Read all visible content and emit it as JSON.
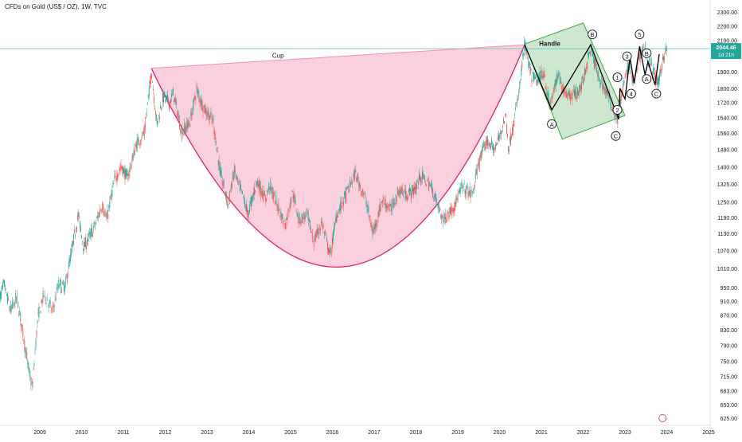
{
  "header": {
    "title": "CFDs on Gold (US$ / OZ), 1W, TVC"
  },
  "colors": {
    "bull": "#26a69a",
    "bear": "#ef5350",
    "cup_fill": "#f8bbd0",
    "cup_line": "#e91e63",
    "handle_fill": "#a5d6a7",
    "handle_line": "#43a047",
    "level_line": "#80cbc4",
    "wave": "#000000",
    "price_badge": "#26a69a",
    "axis_text": "#131722",
    "grid": "#f0f3fa"
  },
  "chart_data": {
    "type": "candlestick",
    "scale": "log",
    "ylim": [
      600,
      2350
    ],
    "xlim": [
      2008.0,
      2025.2
    ],
    "grid": false,
    "y_ticks": [
      "2300.00",
      "2200.00",
      "2100.00",
      "2000.00",
      "1900.00",
      "1800.00",
      "1720.00",
      "1640.00",
      "1560.00",
      "1480.00",
      "1400.00",
      "1325.00",
      "1250.00",
      "1190.00",
      "1130.00",
      "1070.00",
      "1010.00",
      "950.00",
      "910.00",
      "870.00",
      "830.00",
      "790.00",
      "750.00",
      "715.00",
      "683.00",
      "653.00",
      "625.00"
    ],
    "x_ticks": [
      "2009",
      "2010",
      "2011",
      "2012",
      "2013",
      "2014",
      "2015",
      "2016",
      "2017",
      "2018",
      "2019",
      "2020",
      "2021",
      "2022",
      "2023",
      "2024",
      "2025"
    ],
    "last_price": {
      "value": "2044.46",
      "countdown": "1d 21h"
    },
    "price_path": [
      [
        2008.0,
        900
      ],
      [
        2008.15,
        960
      ],
      [
        2008.3,
        880
      ],
      [
        2008.45,
        920
      ],
      [
        2008.6,
        820
      ],
      [
        2008.75,
        720
      ],
      [
        2008.82,
        690
      ],
      [
        2008.95,
        860
      ],
      [
        2009.1,
        930
      ],
      [
        2009.3,
        880
      ],
      [
        2009.45,
        960
      ],
      [
        2009.6,
        950
      ],
      [
        2009.8,
        1100
      ],
      [
        2009.92,
        1200
      ],
      [
        2010.05,
        1080
      ],
      [
        2010.3,
        1150
      ],
      [
        2010.5,
        1240
      ],
      [
        2010.6,
        1180
      ],
      [
        2010.8,
        1350
      ],
      [
        2010.95,
        1400
      ],
      [
        2011.1,
        1350
      ],
      [
        2011.3,
        1500
      ],
      [
        2011.5,
        1560
      ],
      [
        2011.67,
        1900
      ],
      [
        2011.8,
        1600
      ],
      [
        2011.95,
        1750
      ],
      [
        2012.1,
        1720
      ],
      [
        2012.2,
        1770
      ],
      [
        2012.4,
        1560
      ],
      [
        2012.6,
        1620
      ],
      [
        2012.75,
        1790
      ],
      [
        2012.95,
        1680
      ],
      [
        2013.15,
        1620
      ],
      [
        2013.3,
        1390
      ],
      [
        2013.5,
        1240
      ],
      [
        2013.65,
        1380
      ],
      [
        2013.9,
        1250
      ],
      [
        2013.98,
        1200
      ],
      [
        2014.2,
        1340
      ],
      [
        2014.4,
        1260
      ],
      [
        2014.5,
        1320
      ],
      [
        2014.7,
        1230
      ],
      [
        2014.87,
        1160
      ],
      [
        2015.05,
        1290
      ],
      [
        2015.2,
        1180
      ],
      [
        2015.4,
        1200
      ],
      [
        2015.55,
        1100
      ],
      [
        2015.75,
        1170
      ],
      [
        2015.95,
        1050
      ],
      [
        2016.1,
        1200
      ],
      [
        2016.25,
        1250
      ],
      [
        2016.55,
        1370
      ],
      [
        2016.8,
        1260
      ],
      [
        2016.97,
        1130
      ],
      [
        2017.2,
        1260
      ],
      [
        2017.4,
        1220
      ],
      [
        2017.6,
        1300
      ],
      [
        2017.75,
        1280
      ],
      [
        2017.98,
        1300
      ],
      [
        2018.1,
        1360
      ],
      [
        2018.35,
        1320
      ],
      [
        2018.5,
        1250
      ],
      [
        2018.65,
        1180
      ],
      [
        2018.9,
        1230
      ],
      [
        2019.1,
        1310
      ],
      [
        2019.35,
        1280
      ],
      [
        2019.5,
        1420
      ],
      [
        2019.7,
        1520
      ],
      [
        2019.9,
        1480
      ],
      [
        2020.15,
        1650
      ],
      [
        2020.22,
        1480
      ],
      [
        2020.45,
        1750
      ],
      [
        2020.6,
        2070
      ],
      [
        2020.75,
        1880
      ],
      [
        2020.9,
        1840
      ],
      [
        2021.05,
        1900
      ],
      [
        2021.2,
        1700
      ],
      [
        2021.4,
        1880
      ],
      [
        2021.55,
        1780
      ],
      [
        2021.75,
        1760
      ],
      [
        2021.95,
        1800
      ],
      [
        2022.18,
        2050
      ],
      [
        2022.35,
        1880
      ],
      [
        2022.55,
        1780
      ],
      [
        2022.7,
        1700
      ],
      [
        2022.82,
        1630
      ],
      [
        2022.95,
        1800
      ],
      [
        2023.1,
        1950
      ],
      [
        2023.2,
        1820
      ],
      [
        2023.35,
        2000
      ],
      [
        2023.45,
        2050
      ],
      [
        2023.6,
        1950
      ],
      [
        2023.75,
        1850
      ],
      [
        2023.8,
        1820
      ],
      [
        2023.92,
        2000
      ],
      [
        2024.0,
        2044
      ]
    ],
    "annotations": {
      "cup_label": "Cup",
      "handle_label": "Handle",
      "wave_labels": [
        "A",
        "B",
        "C",
        "1",
        "2",
        "3",
        "4",
        "5",
        "A",
        "B",
        "C"
      ]
    },
    "cup": {
      "rim_left": [
        2011.67,
        1920
      ],
      "rim_right": [
        2020.6,
        2070
      ],
      "bottom": [
        2016.3,
        1015
      ]
    },
    "handle_channel": [
      [
        2020.6,
        2075
      ],
      [
        2022.0,
        2220
      ],
      [
        2023.0,
        1650
      ],
      [
        2021.5,
        1530
      ]
    ],
    "handle_wave": [
      [
        2020.6,
        2070
      ],
      [
        2021.25,
        1680
      ],
      [
        2022.18,
        2070
      ],
      [
        2022.85,
        1630
      ]
    ],
    "waves": [
      {
        "label": "A",
        "at": [
          2021.25,
          1605
        ]
      },
      {
        "label": "B",
        "at": [
          2022.22,
          2140
        ]
      },
      {
        "label": "C",
        "at": [
          2022.78,
          1545
        ]
      },
      {
        "label": "1",
        "at": [
          2022.82,
          1865
        ]
      },
      {
        "label": "2",
        "at": [
          2022.82,
          1680
        ]
      },
      {
        "label": "3",
        "at": [
          2023.05,
          1995
        ]
      },
      {
        "label": "4",
        "at": [
          2023.15,
          1770
        ]
      },
      {
        "label": "5",
        "at": [
          2023.35,
          2140
        ]
      },
      {
        "label": "B",
        "at": [
          2023.52,
          2015
        ]
      },
      {
        "label": "A",
        "at": [
          2023.52,
          1855
        ]
      },
      {
        "label": "C",
        "at": [
          2023.75,
          1770
        ]
      }
    ],
    "elliott_path": [
      [
        2022.85,
        1630
      ],
      [
        2022.88,
        1800
      ],
      [
        2023.0,
        1740
      ],
      [
        2023.12,
        1985
      ],
      [
        2023.22,
        1830
      ],
      [
        2023.35,
        2060
      ],
      [
        2023.48,
        1880
      ],
      [
        2023.55,
        1960
      ],
      [
        2023.72,
        1820
      ],
      [
        2023.82,
        2010
      ]
    ]
  }
}
